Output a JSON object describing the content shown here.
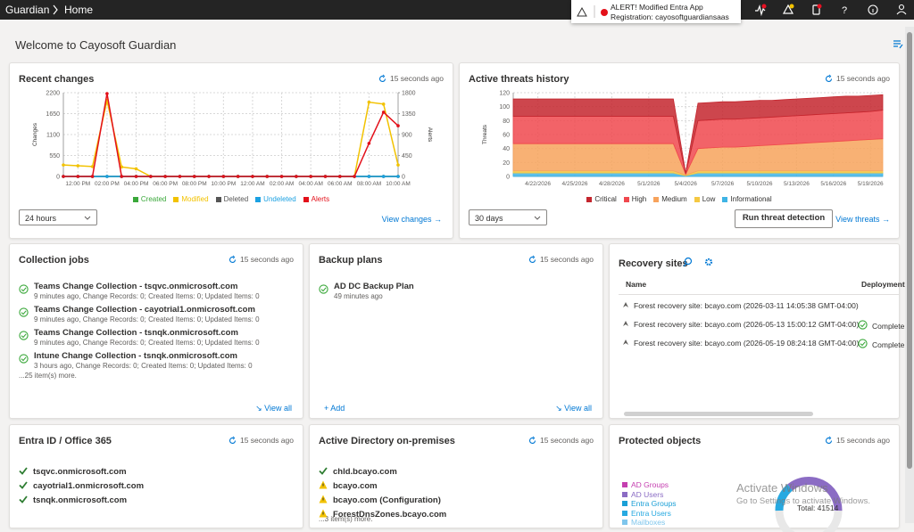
{
  "header": {
    "breadcrumb": [
      "Guardian",
      "Home"
    ],
    "alert_title": "ALERT! Modified Entra App",
    "alert_text": "Registration: cayosoftguardiansaas"
  },
  "page_title": "Welcome to Cayosoft Guardian",
  "recent_changes": {
    "title": "Recent changes",
    "refreshed": "15 seconds ago",
    "range": "24 hours",
    "link": "View changes",
    "chart": {
      "type": "line",
      "ylabel": "Changes",
      "y2label": "Alerts",
      "categories": [
        null,
        "12:00 PM",
        null,
        "02:00 PM",
        null,
        "04:00 PM",
        null,
        "06:00 PM",
        null,
        "08:00 PM",
        null,
        "10:00 PM",
        null,
        "12:00 AM",
        null,
        "02:00 AM",
        null,
        "04:00 AM",
        null,
        "06:00 AM",
        null,
        "08:00 AM",
        null,
        "10:00 AM"
      ],
      "ylim": [
        0,
        2200
      ],
      "yticks": [
        0,
        550,
        1100,
        1650,
        2200
      ],
      "y2lim": [
        0,
        1800
      ],
      "y2ticks": [
        0,
        450,
        900,
        1350,
        1800
      ],
      "grid": true,
      "legend": "bottom",
      "series": [
        {
          "name": "Created",
          "color": "#3aa83a",
          "values": [
            0,
            0,
            0,
            0,
            0,
            0,
            0,
            0,
            0,
            0,
            0,
            0,
            0,
            0,
            0,
            0,
            0,
            0,
            0,
            0,
            0,
            0,
            0,
            0
          ]
        },
        {
          "name": "Modified",
          "color": "#f2c200",
          "values": [
            300,
            280,
            260,
            2000,
            250,
            200,
            0,
            0,
            0,
            0,
            0,
            0,
            0,
            0,
            0,
            0,
            0,
            0,
            0,
            0,
            0,
            1950,
            1900,
            300
          ]
        },
        {
          "name": "Deleted",
          "color": "#555555",
          "values": [
            0,
            0,
            0,
            0,
            0,
            0,
            0,
            0,
            0,
            0,
            0,
            0,
            0,
            0,
            0,
            0,
            0,
            0,
            0,
            0,
            0,
            0,
            0,
            0
          ]
        },
        {
          "name": "Undeleted",
          "color": "#1ba1e2",
          "values": [
            0,
            0,
            0,
            0,
            0,
            0,
            0,
            0,
            0,
            0,
            0,
            0,
            0,
            0,
            0,
            0,
            0,
            0,
            0,
            0,
            0,
            0,
            0,
            0
          ]
        },
        {
          "name": "Alerts",
          "color": "#e3101a",
          "axis": "y2",
          "values": [
            0,
            0,
            0,
            1780,
            0,
            0,
            0,
            0,
            0,
            0,
            0,
            0,
            0,
            0,
            0,
            0,
            0,
            0,
            0,
            0,
            0,
            710,
            1380,
            1090
          ]
        }
      ]
    }
  },
  "threats": {
    "title": "Active threats history",
    "refreshed": "15 seconds ago",
    "range": "30 days",
    "button": "Run threat detection",
    "link": "View threats",
    "chart": {
      "type": "stacked-area",
      "ylabel": "Threats",
      "categories": [
        null,
        null,
        "4/22/2026",
        null,
        null,
        "4/25/2026",
        null,
        null,
        "4/28/2026",
        null,
        null,
        "5/1/2026",
        null,
        null,
        "5/4/2026",
        null,
        null,
        "5/7/2026",
        null,
        null,
        "5/10/2026",
        null,
        null,
        "5/13/2026",
        null,
        null,
        "5/16/2026",
        null,
        null,
        "5/19/2026",
        null
      ],
      "ylim": [
        0,
        120
      ],
      "yticks": [
        0,
        20,
        40,
        60,
        80,
        100,
        120
      ],
      "grid": true,
      "legend": "bottom",
      "series": [
        {
          "name": "Critical",
          "color": "#c4262e",
          "values": [
            25,
            25,
            25,
            25,
            25,
            25,
            25,
            25,
            25,
            25,
            25,
            25,
            25,
            25,
            1,
            25,
            25,
            25,
            25,
            25,
            25,
            24,
            24,
            24,
            24,
            24,
            24,
            24,
            23,
            23,
            22
          ]
        },
        {
          "name": "High",
          "color": "#f0484e",
          "values": [
            39,
            39,
            39,
            39,
            39,
            39,
            39,
            39,
            39,
            39,
            39,
            39,
            39,
            39,
            1,
            40,
            40,
            40,
            40,
            40,
            40,
            40,
            40,
            40,
            40,
            40,
            40,
            40,
            40,
            40,
            41
          ]
        },
        {
          "name": "Medium",
          "color": "#f7a35c",
          "values": [
            39,
            39,
            39,
            39,
            39,
            39,
            39,
            39,
            39,
            39,
            39,
            39,
            39,
            39,
            1,
            32,
            33,
            34,
            34,
            35,
            36,
            37,
            38,
            39,
            40,
            41,
            42,
            43,
            44,
            45,
            46
          ]
        },
        {
          "name": "Low",
          "color": "#f5c842",
          "values": [
            3,
            3,
            3,
            3,
            3,
            3,
            3,
            3,
            3,
            3,
            3,
            3,
            3,
            3,
            1,
            3,
            3,
            3,
            3,
            3,
            3,
            3,
            3,
            3,
            3,
            3,
            3,
            3,
            3,
            3,
            3
          ]
        },
        {
          "name": "Informational",
          "color": "#3fb4e5",
          "values": [
            5,
            5,
            5,
            5,
            5,
            5,
            5,
            5,
            5,
            5,
            5,
            5,
            5,
            5,
            1,
            5,
            5,
            5,
            5,
            5,
            5,
            5,
            5,
            5,
            5,
            5,
            5,
            5,
            5,
            5,
            5
          ]
        }
      ]
    }
  },
  "collection_jobs": {
    "title": "Collection jobs",
    "refreshed": "15 seconds ago",
    "items": [
      {
        "name": "Teams Change Collection - tsqvc.onmicrosoft.com",
        "detail": "9 minutes ago, Change Records: 0; Created Items: 0; Updated Items: 0",
        "status": "ok"
      },
      {
        "name": "Teams Change Collection - cayotrial1.onmicrosoft.com",
        "detail": "9 minutes ago, Change Records: 0; Created Items: 0; Updated Items: 0",
        "status": "ok"
      },
      {
        "name": "Teams Change Collection - tsnqk.onmicrosoft.com",
        "detail": "9 minutes ago, Change Records: 0; Created Items: 0; Updated Items: 0",
        "status": "ok"
      },
      {
        "name": "Intune Change Collection - tsnqk.onmicrosoft.com",
        "detail": "3 hours ago, Change Records: 0; Created Items: 0; Updated Items: 0",
        "status": "ok"
      }
    ],
    "more": "...25 item(s) more.",
    "link": "View all"
  },
  "backup_plans": {
    "title": "Backup plans",
    "refreshed": "15 seconds ago",
    "items": [
      {
        "name": "AD DC Backup Plan",
        "detail": "49 minutes ago",
        "status": "ok"
      }
    ],
    "add": "Add",
    "link": "View all"
  },
  "recovery_sites": {
    "title": "Recovery sites",
    "columns": [
      "Name",
      "Deployment"
    ],
    "rows": [
      {
        "name": "Forest recovery site: bcayo.com (2026-03-11 14:05:38 GMT-04:00)"
      },
      {
        "name": "Forest recovery site: bcayo.com (2026-05-13 15:00:12 GMT-04:00)",
        "status": "Complete"
      },
      {
        "name": "Forest recovery site: bcayo.com (2026-05-19 08:24:18 GMT-04:00)",
        "status": "Complete"
      }
    ]
  },
  "entra": {
    "title": "Entra ID / Office 365",
    "refreshed": "15 seconds ago",
    "items": [
      {
        "name": "tsqvc.onmicrosoft.com",
        "status": "ok"
      },
      {
        "name": "cayotrial1.onmicrosoft.com",
        "status": "ok"
      },
      {
        "name": "tsnqk.onmicrosoft.com",
        "status": "ok"
      }
    ]
  },
  "active_directory": {
    "title": "Active Directory on-premises",
    "refreshed": "15 seconds ago",
    "items": [
      {
        "name": "chld.bcayo.com",
        "status": "ok"
      },
      {
        "name": "bcayo.com",
        "status": "warning"
      },
      {
        "name": "bcayo.com (Configuration)",
        "status": "warning"
      },
      {
        "name": "ForestDnsZones.bcayo.com",
        "status": "warning"
      }
    ],
    "more": "...3 item(s) more."
  },
  "protected_objects": {
    "title": "Protected objects",
    "refreshed": "15 seconds ago",
    "legend": [
      {
        "name": "AD Groups",
        "color": "#c53fb0"
      },
      {
        "name": "AD Users",
        "color": "#8b6cc4"
      },
      {
        "name": "Entra Groups",
        "color": "#1a9fd6"
      },
      {
        "name": "Entra Users",
        "color": "#27a9e1"
      },
      {
        "name": "Mailboxes",
        "color": "#7fc6ec"
      }
    ],
    "total": "Total: 41514"
  },
  "watermark": {
    "title": "Activate Windows",
    "text": "Go to Settings to activate Windows."
  }
}
